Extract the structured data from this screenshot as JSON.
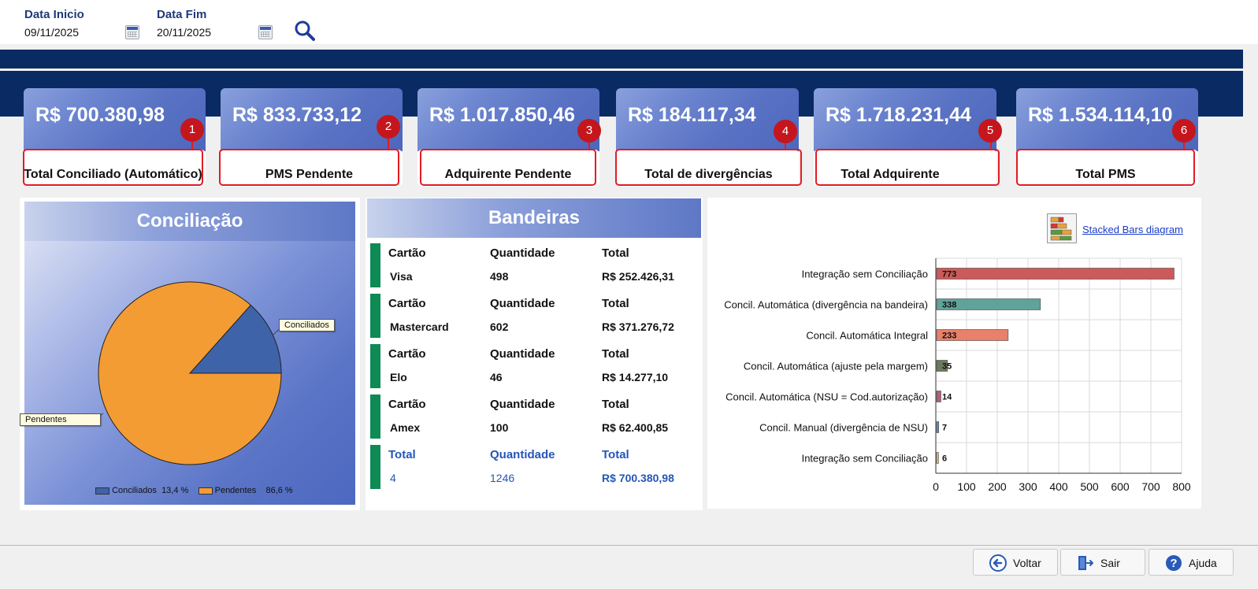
{
  "filters": {
    "start_label": "Data Inicio",
    "start_value": "09/11/2025",
    "end_label": "Data Fim",
    "end_value": "20/11/2025"
  },
  "kpis": [
    {
      "value": "R$ 700.380,98",
      "label": "Total Conciliado (Automático)",
      "badge": "1"
    },
    {
      "value": "R$ 833.733,12",
      "label": "PMS Pendente",
      "badge": "2"
    },
    {
      "value": "R$ 1.017.850,46",
      "label": "Adquirente Pendente",
      "badge": "3"
    },
    {
      "value": "R$ 184.117,34",
      "label": "Total de divergências",
      "badge": "4"
    },
    {
      "value": "R$ 1.718.231,44",
      "label": "Total Adquirente",
      "badge": "5"
    },
    {
      "value": "R$ 1.534.114,10",
      "label": "Total PMS",
      "badge": "6"
    }
  ],
  "conciliacao": {
    "title": "Conciliação",
    "callout_conciliados": "Conciliados",
    "callout_pendentes": "Pendentes",
    "legend": [
      {
        "name": "Conciliados",
        "pct": "13,4 %",
        "color": "#3f63a8"
      },
      {
        "name": "Pendentes",
        "pct": "86,6 %",
        "color": "#f39c33"
      }
    ],
    "chart_data": {
      "type": "pie",
      "labels": [
        "Conciliados",
        "Pendentes"
      ],
      "values": [
        13.4,
        86.6
      ],
      "colors": [
        "#3f63a8",
        "#f39c33"
      ]
    }
  },
  "bandeiras": {
    "title": "Bandeiras",
    "headers": {
      "card": "Cartão",
      "qty": "Quantidade",
      "total": "Total"
    },
    "rows": [
      {
        "card": "Visa",
        "qty": "498",
        "total": "R$ 252.426,31"
      },
      {
        "card": "Mastercard",
        "qty": "602",
        "total": "R$ 371.276,72"
      },
      {
        "card": "Elo",
        "qty": "46",
        "total": "R$ 14.277,10"
      },
      {
        "card": "Amex",
        "qty": "100",
        "total": "R$ 62.400,85"
      }
    ],
    "total_row": {
      "label": "Total",
      "qty_label": "Quantidade",
      "total_label": "Total",
      "card": "4",
      "qty": "1246",
      "total": "R$ 700.380,98"
    }
  },
  "barchart": {
    "link_label": "Stacked Bars diagram",
    "chart_data": {
      "type": "bar",
      "orientation": "horizontal",
      "categories": [
        "Integração sem Conciliação",
        "Concil. Automática (divergência na bandeira)",
        "Concil. Automática Integral",
        "Concil. Automática (ajuste pela margem)",
        "Concil. Automática (NSU = Cod.autorização)",
        "Concil. Manual (divergência de NSU)",
        "Integração sem Conciliação"
      ],
      "values": [
        773,
        338,
        233,
        35,
        14,
        7,
        6
      ],
      "colors": [
        "#cd5a5a",
        "#5fa39a",
        "#e8806a",
        "#6c7a5c",
        "#b0607e",
        "#6f8fb8",
        "#e8c060"
      ],
      "xlim": [
        0,
        800
      ],
      "xticks": [
        "0",
        "100",
        "200",
        "300",
        "400",
        "500",
        "600",
        "700",
        "800"
      ]
    }
  },
  "buttons": {
    "voltar": "Voltar",
    "sair": "Sair",
    "ajuda": "Ajuda"
  }
}
